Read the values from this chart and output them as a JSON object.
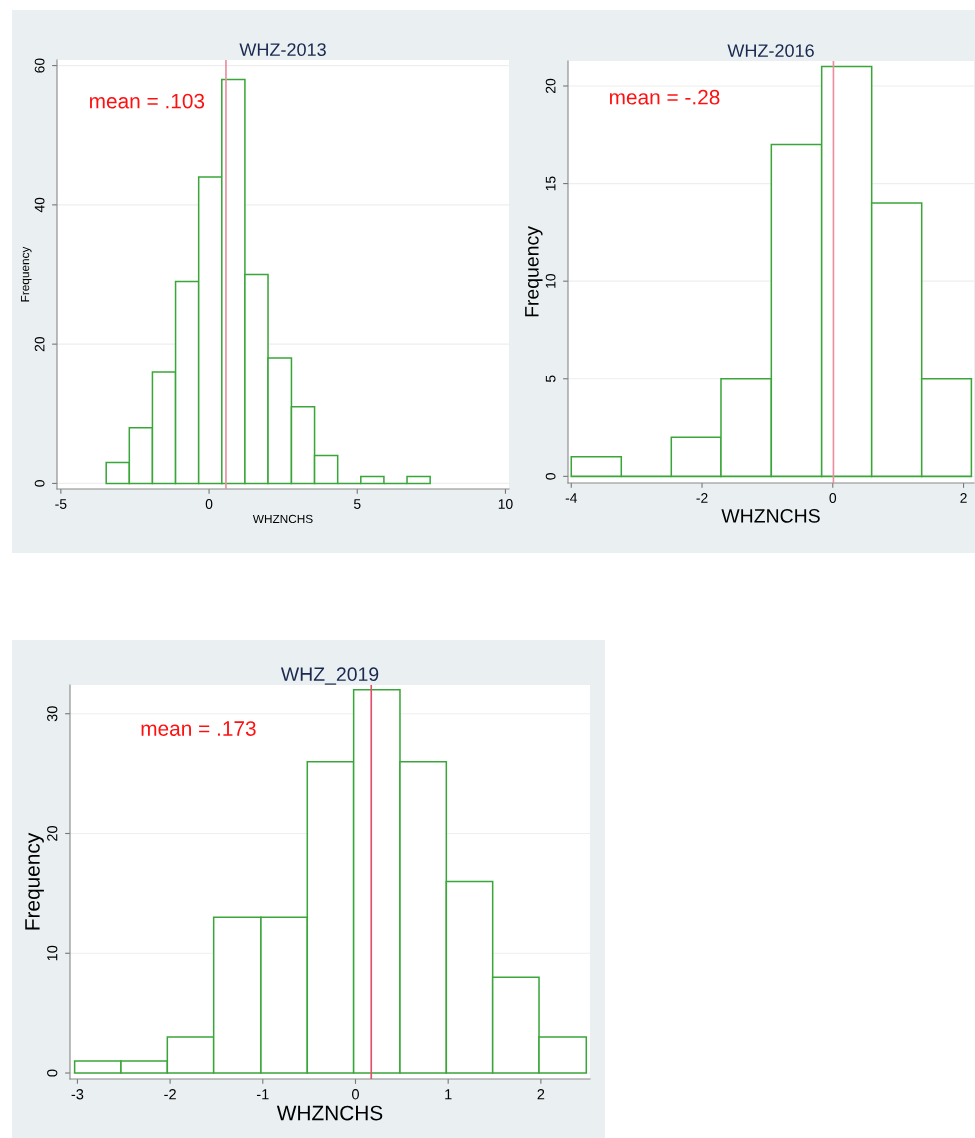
{
  "chart_data": [
    {
      "type": "histogram",
      "title": "WHZ-2013",
      "xlabel": "WHZNCHS",
      "ylabel": "Frequency",
      "annotations": [
        "mean = .103"
      ],
      "bins": [
        -3.47,
        -2.69,
        -1.91,
        -1.13,
        -0.35,
        0.43,
        1.21,
        1.99,
        2.78,
        3.56,
        4.34,
        5.12,
        5.9,
        6.68,
        7.46
      ],
      "values": [
        3,
        8,
        16,
        29,
        44,
        58,
        30,
        18,
        11,
        4,
        0,
        1,
        0,
        1
      ],
      "color": "#3aa63a",
      "xlim": [
        -5.13,
        10.12
      ],
      "xticks": [
        -5,
        0,
        5,
        10
      ],
      "ylim": [
        -0.8,
        60.8
      ],
      "yticks": [
        0,
        20,
        40,
        60
      ],
      "grid": "y",
      "ref_lines": [
        {
          "axis": "x",
          "value": 0.57,
          "color": "#e890a0"
        }
      ]
    },
    {
      "type": "histogram",
      "title": "WHZ-2016",
      "xlabel": "WHZNCHS",
      "ylabel": "Frequency",
      "annotations": [
        "mean = -.28"
      ],
      "bins": [
        -4.0,
        -3.235,
        -2.47,
        -1.71,
        -0.94,
        -0.17,
        0.595,
        1.36,
        2.12
      ],
      "values": [
        1,
        0,
        2,
        5,
        17,
        21,
        14,
        5
      ],
      "color": "#3aa63a",
      "xlim": [
        -4.05,
        2.16
      ],
      "xticks": [
        -4,
        -2,
        0,
        2
      ],
      "ylim": [
        -0.34,
        21.28
      ],
      "yticks": [
        0,
        5,
        10,
        15,
        20
      ],
      "grid": "y",
      "ref_lines": [
        {
          "axis": "x",
          "value": 0.01,
          "color": "#e890a0"
        }
      ]
    },
    {
      "type": "histogram",
      "title": "WHZ_2019",
      "xlabel": "WHZNCHS",
      "ylabel": "Frequency",
      "annotations": [
        "mean = .173"
      ],
      "bins": [
        -3.03,
        -2.53,
        -2.03,
        -1.53,
        -1.02,
        -0.52,
        -0.02,
        0.48,
        0.98,
        1.48,
        1.98,
        2.49
      ],
      "values": [
        1,
        1,
        3,
        13,
        13,
        26,
        32,
        26,
        16,
        8,
        3
      ],
      "color": "#3aa63a",
      "xlim": [
        -3.08,
        2.53
      ],
      "xticks": [
        -3,
        -2,
        -1,
        0,
        1,
        2
      ],
      "ylim": [
        -0.5,
        32.4
      ],
      "yticks": [
        0,
        10,
        20,
        30
      ],
      "grid": "y",
      "ref_lines": [
        {
          "axis": "x",
          "value": 0.17,
          "color": "#e0506a"
        }
      ]
    }
  ]
}
